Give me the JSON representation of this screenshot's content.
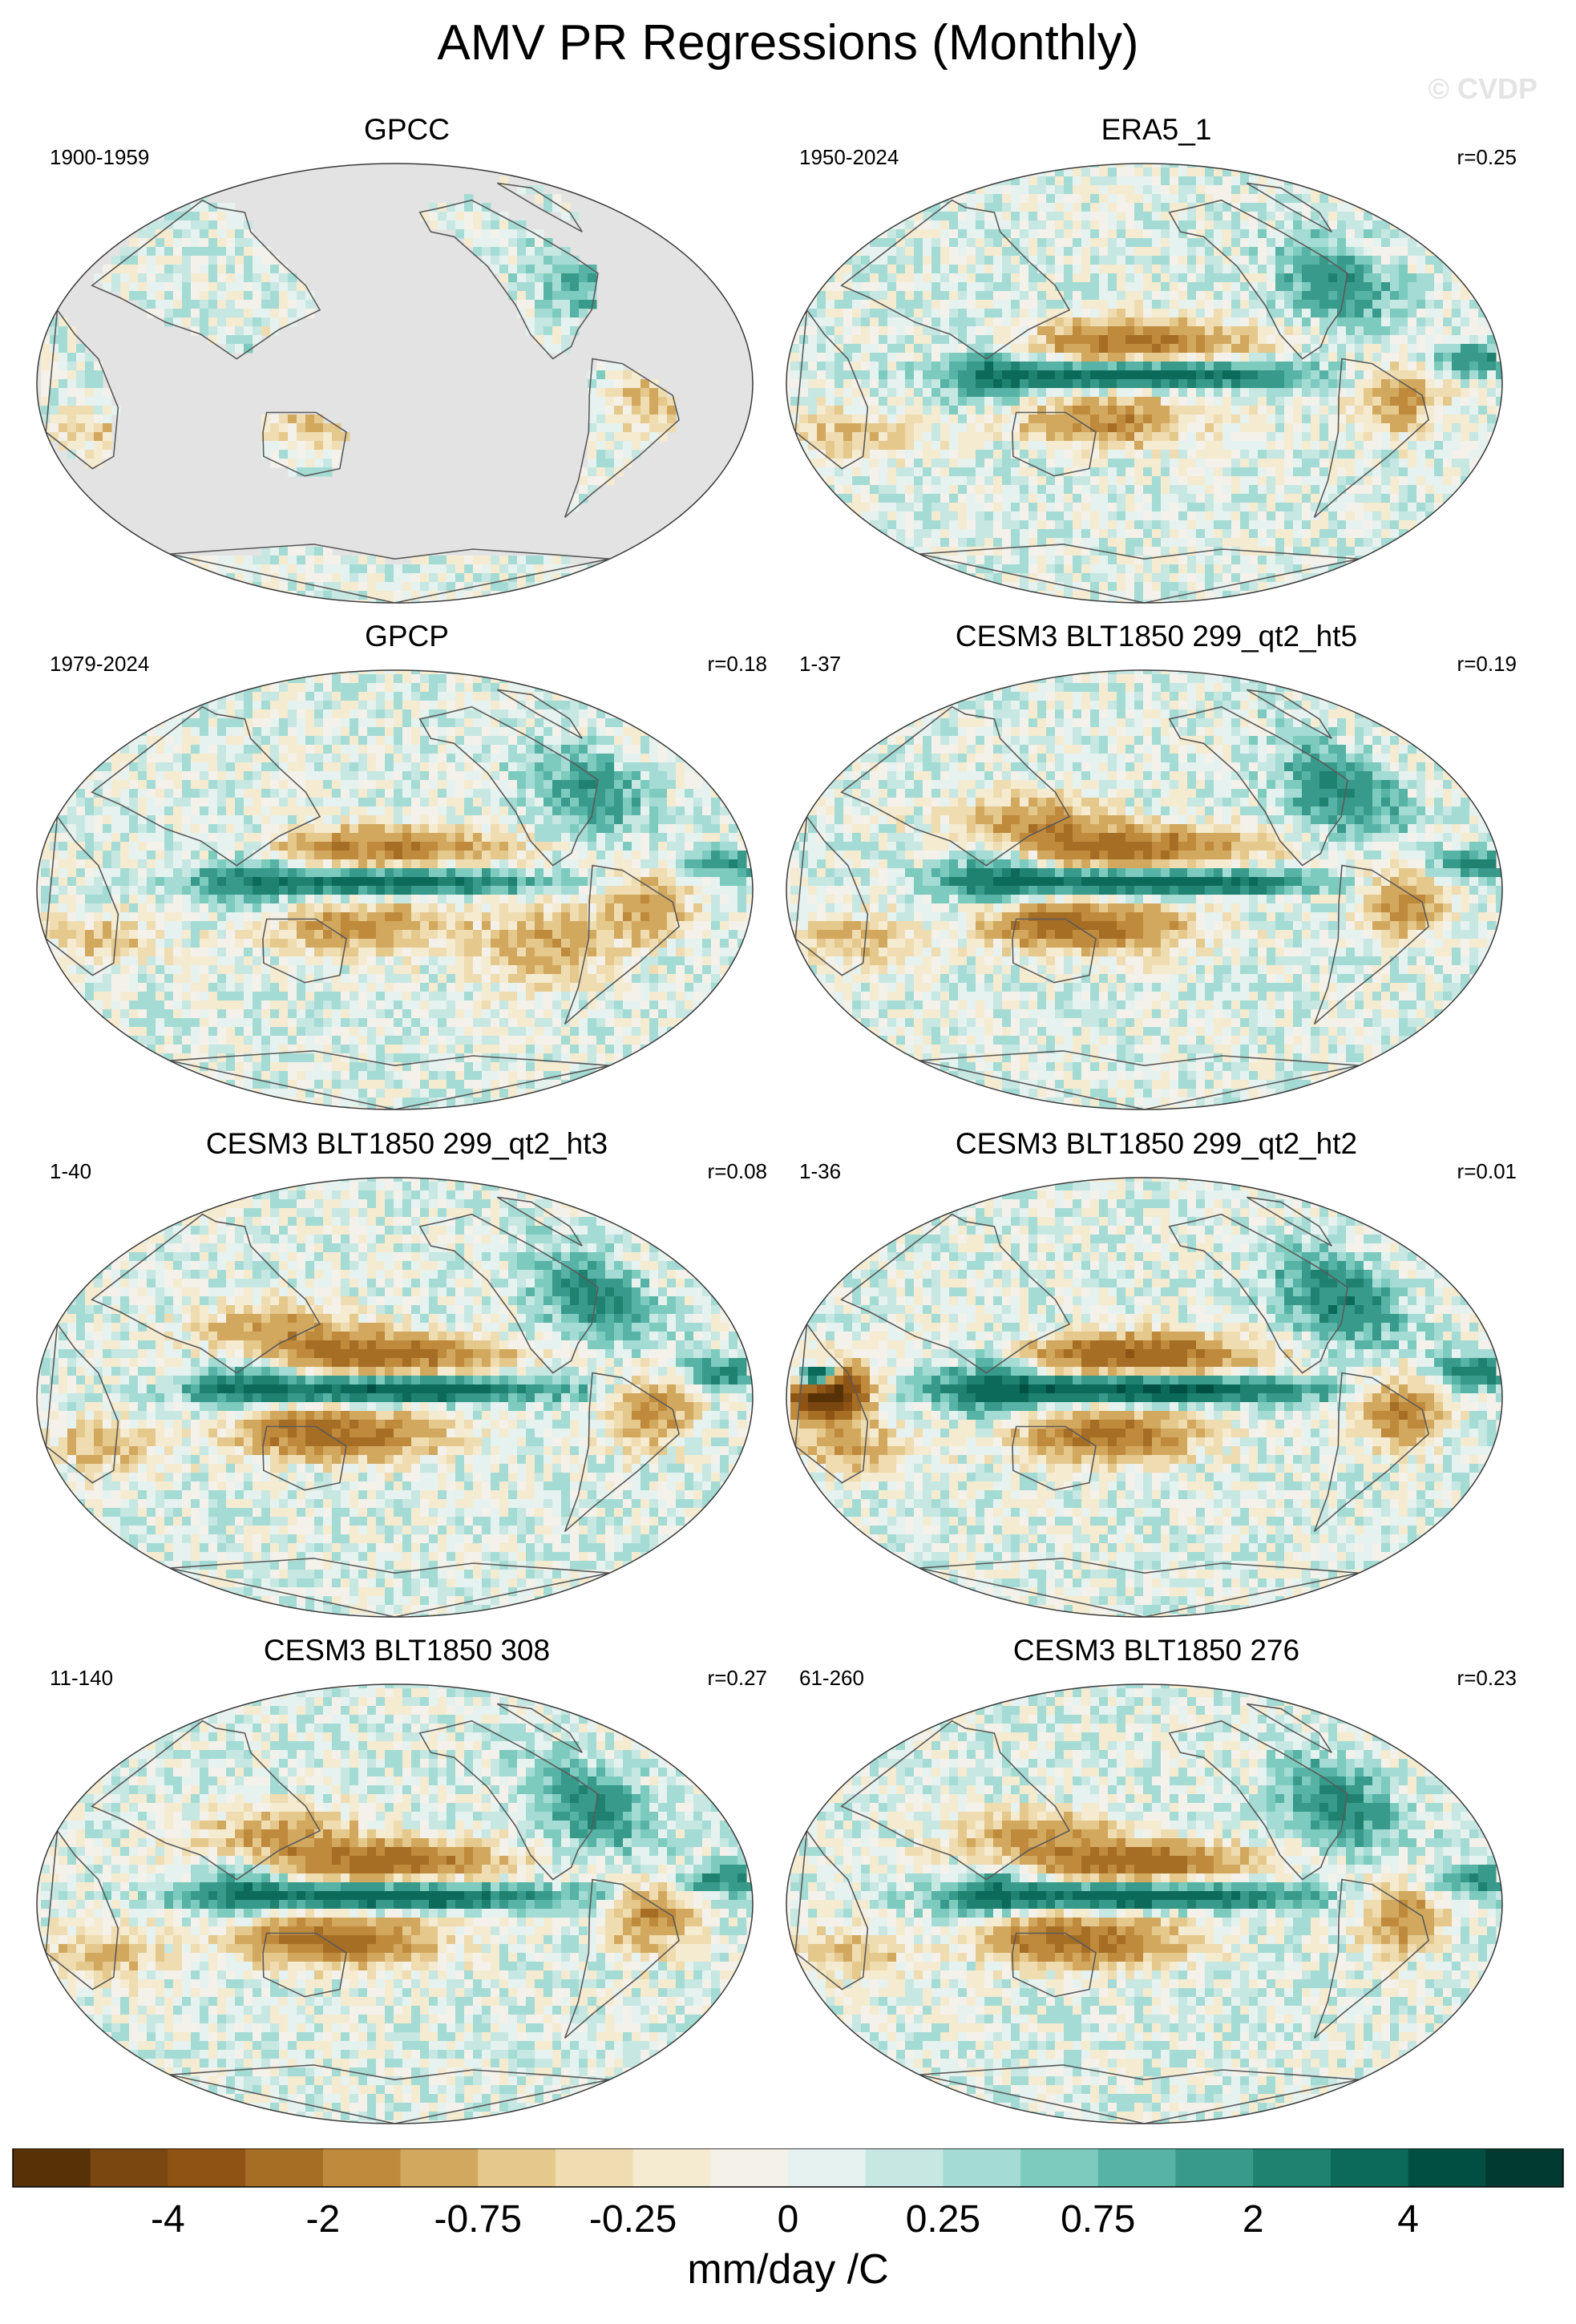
{
  "figure": {
    "title": "AMV PR Regressions (Monthly)",
    "watermark": "© CVDP"
  },
  "chart_data": [
    {
      "type": "heatmap",
      "title": "GPCC",
      "period": "1900-1959",
      "r": "",
      "pattern": "land"
    },
    {
      "type": "heatmap",
      "title": "ERA5_1",
      "period": "1950-2024",
      "r": "r=0.25",
      "pattern": "obs"
    },
    {
      "type": "heatmap",
      "title": "GPCP",
      "period": "1979-2024",
      "r": "r=0.18",
      "pattern": "obs2"
    },
    {
      "type": "heatmap",
      "title": "CESM3 BLT1850 299_qt2_ht5",
      "period": "1-37",
      "r": "r=0.19",
      "pattern": "model"
    },
    {
      "type": "heatmap",
      "title": "CESM3 BLT1850 299_qt2_ht3",
      "period": "1-40",
      "r": "r=0.08",
      "pattern": "model"
    },
    {
      "type": "heatmap",
      "title": "CESM3 BLT1850 299_qt2_ht2",
      "period": "1-36",
      "r": "r=0.01",
      "pattern": "strong"
    },
    {
      "type": "heatmap",
      "title": "CESM3 BLT1850 308",
      "period": "11-140",
      "r": "r=0.27",
      "pattern": "model"
    },
    {
      "type": "heatmap",
      "title": "CESM3 BLT1850 276",
      "period": "61-260",
      "r": "r=0.23",
      "pattern": "model"
    }
  ],
  "colorbar": {
    "label": "mm/day /C",
    "colors": [
      "#573207",
      "#7a4711",
      "#8f5313",
      "#a66d24",
      "#bf8a3c",
      "#d2a85e",
      "#e4c88c",
      "#efdcb0",
      "#f5ebd0",
      "#f4f1ea",
      "#e6f2ef",
      "#c6e7e2",
      "#a4dbd4",
      "#7dcbbe",
      "#56b3a5",
      "#379a8b",
      "#1f8170",
      "#0c6a5b",
      "#004f42",
      "#003a30"
    ],
    "ticks": [
      "-4",
      "-2",
      "-0.75",
      "-0.25",
      "0",
      "0.25",
      "0.75",
      "2",
      "4"
    ]
  }
}
